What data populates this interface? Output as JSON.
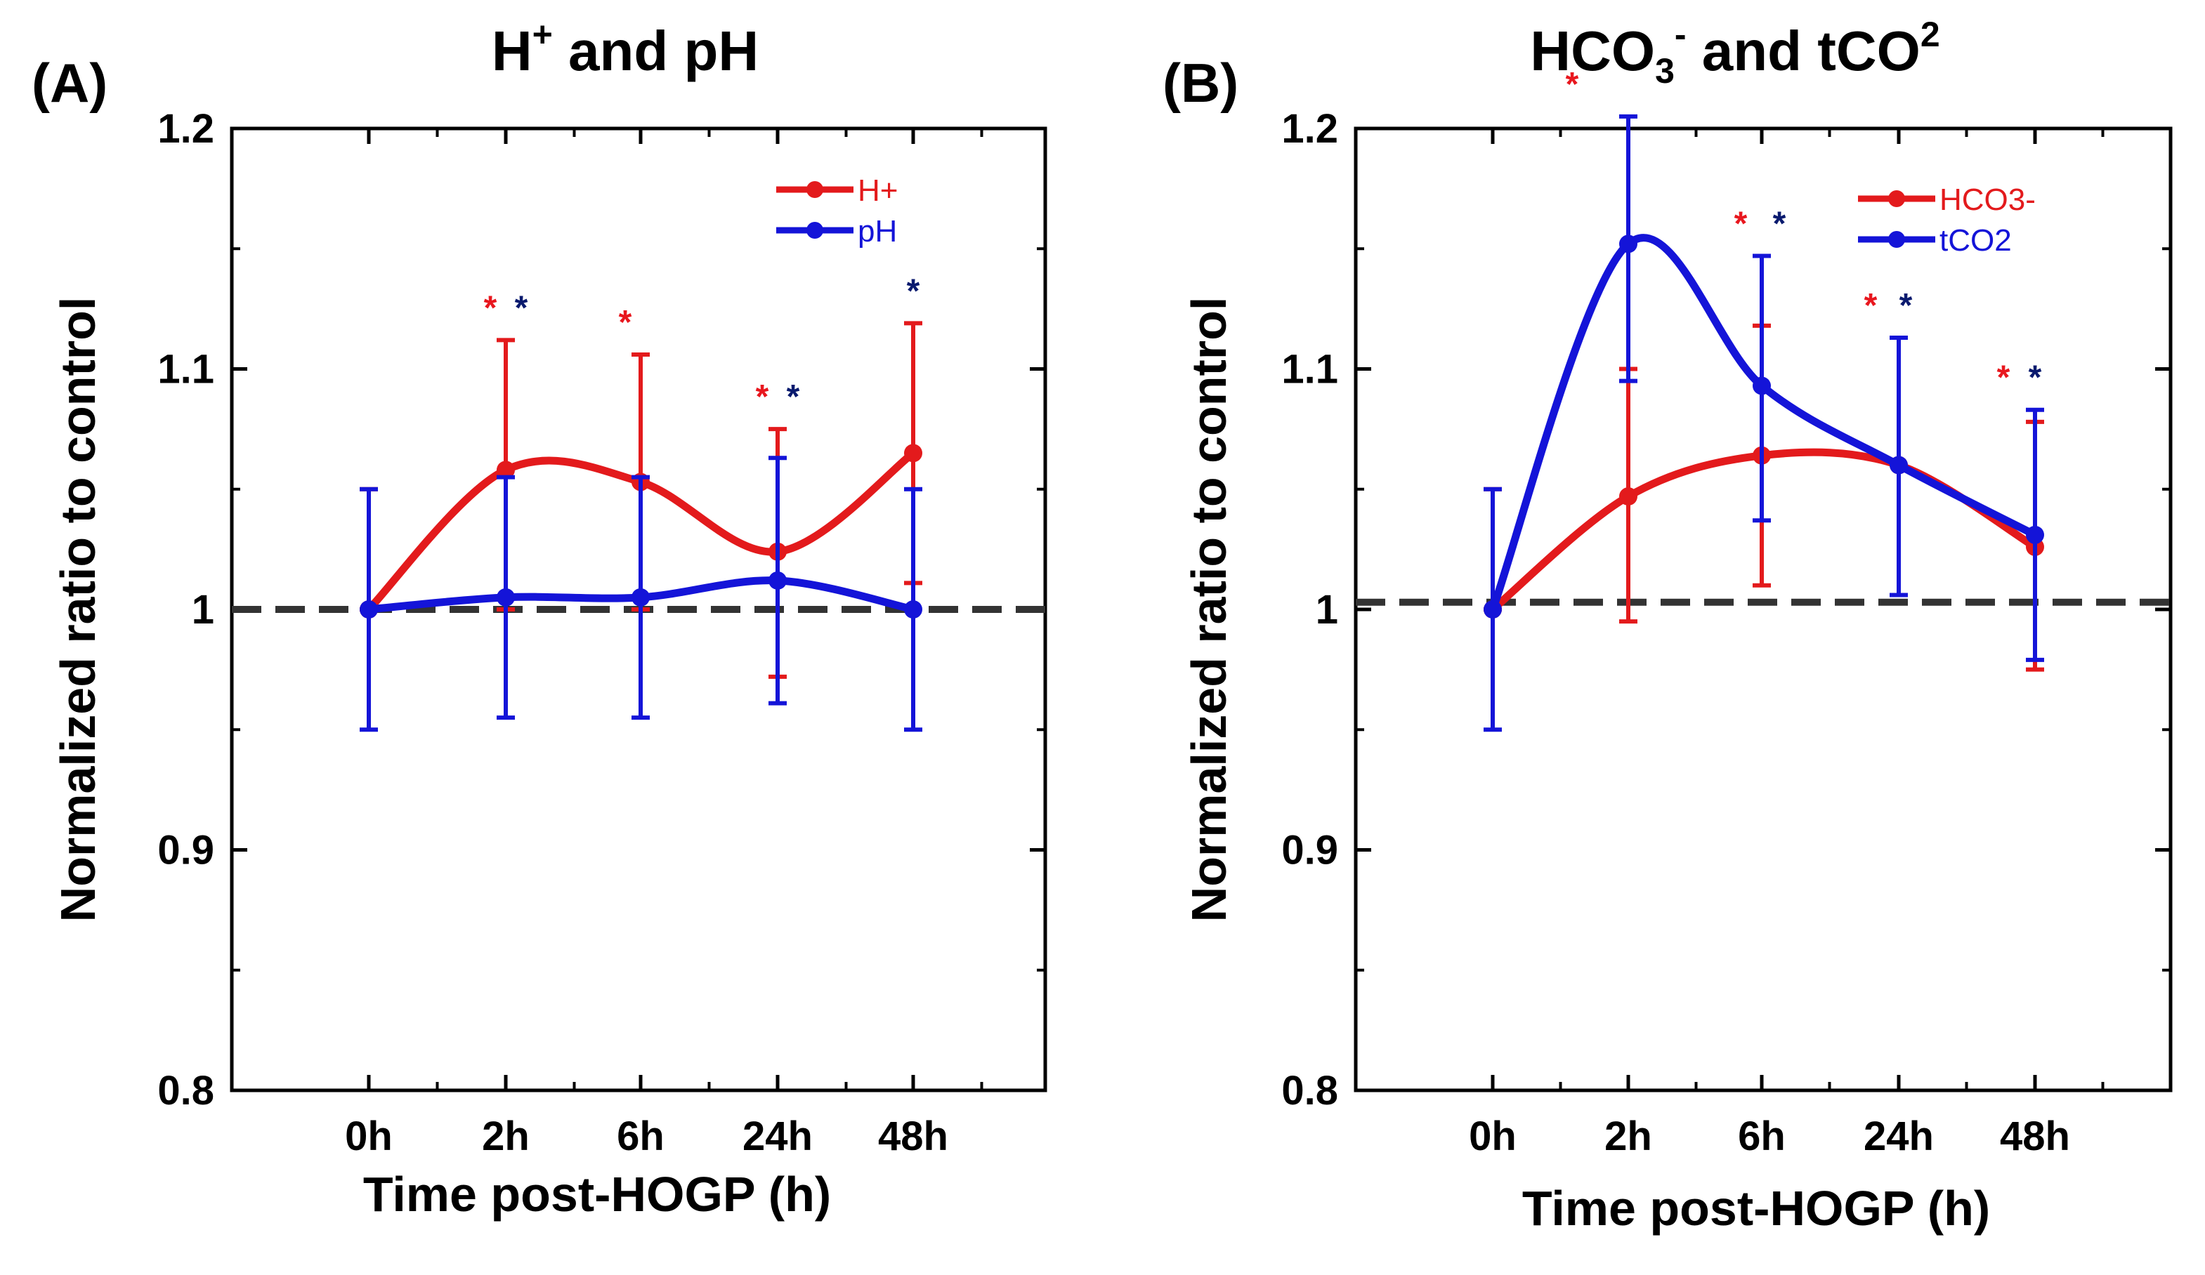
{
  "chart_data": [
    {
      "type": "line",
      "panel_label": "(A)",
      "title_main": "H",
      "title_sup": "+",
      "title_rest": " and pH",
      "xlabel": "Time post-HOGP (h)",
      "ylabel": "Normalized ratio to control",
      "categories": [
        "0h",
        "2h",
        "6h",
        "24h",
        "48h"
      ],
      "ylim": [
        0.8,
        1.2
      ],
      "yticks": [
        "1.2",
        "1.1",
        "1",
        "0.9",
        "0.8"
      ],
      "ytick_values": [
        1.2,
        1.1,
        1.0,
        0.9,
        0.8
      ],
      "reference_line": 1.0,
      "legend_position": "top-right",
      "series": [
        {
          "name": "H+",
          "color": "#e31a1c",
          "values": [
            1.0,
            1.058,
            1.053,
            1.024,
            1.065
          ],
          "err_upper": [
            1.05,
            1.112,
            1.106,
            1.075,
            1.119
          ],
          "err_lower": [
            1.0,
            1.0,
            1.0,
            0.972,
            1.011
          ],
          "sig_marks": [
            null,
            "*",
            "*",
            "*",
            null
          ]
        },
        {
          "name": "pH",
          "color": "#1414d8",
          "values": [
            1.0,
            1.005,
            1.005,
            1.012,
            1.0
          ],
          "err_upper": [
            1.05,
            1.055,
            1.055,
            1.063,
            1.05
          ],
          "err_lower": [
            0.95,
            0.955,
            0.955,
            0.961,
            0.95
          ],
          "sig_marks": [
            null,
            "*",
            null,
            "*",
            "*"
          ]
        }
      ]
    },
    {
      "type": "line",
      "panel_label": "(B)",
      "title_main": "HCO",
      "title_sub": "3",
      "title_sup": "-",
      "title_rest": " and tCO",
      "title_sup2": "2",
      "xlabel": "Time post-HOGP (h)",
      "ylabel": "Normalized ratio to control",
      "categories": [
        "0h",
        "2h",
        "6h",
        "24h",
        "48h"
      ],
      "ylim": [
        0.8,
        1.2
      ],
      "yticks": [
        "1.2",
        "1.1",
        "1",
        "0.9",
        "0.8"
      ],
      "ytick_values": [
        1.2,
        1.1,
        1.0,
        0.9,
        0.8
      ],
      "reference_line": 1.003,
      "legend_position": "top-right",
      "series": [
        {
          "name": "HCO3-",
          "color": "#e31a1c",
          "values": [
            1.0,
            1.047,
            1.064,
            1.06,
            1.026
          ],
          "err_upper": [
            1.05,
            1.1,
            1.118,
            1.113,
            1.078
          ],
          "err_lower": [
            1.0,
            0.995,
            1.01,
            1.006,
            0.975
          ],
          "sig_marks": [
            null,
            "*",
            "*",
            "*",
            "*"
          ]
        },
        {
          "name": "tCO2",
          "color": "#1414d8",
          "values": [
            1.0,
            1.152,
            1.093,
            1.06,
            1.031
          ],
          "err_upper": [
            1.05,
            1.205,
            1.147,
            1.113,
            1.083
          ],
          "err_lower": [
            0.95,
            1.095,
            1.037,
            1.006,
            0.979
          ],
          "sig_marks": [
            null,
            null,
            "*",
            "*",
            "*"
          ]
        }
      ]
    }
  ]
}
